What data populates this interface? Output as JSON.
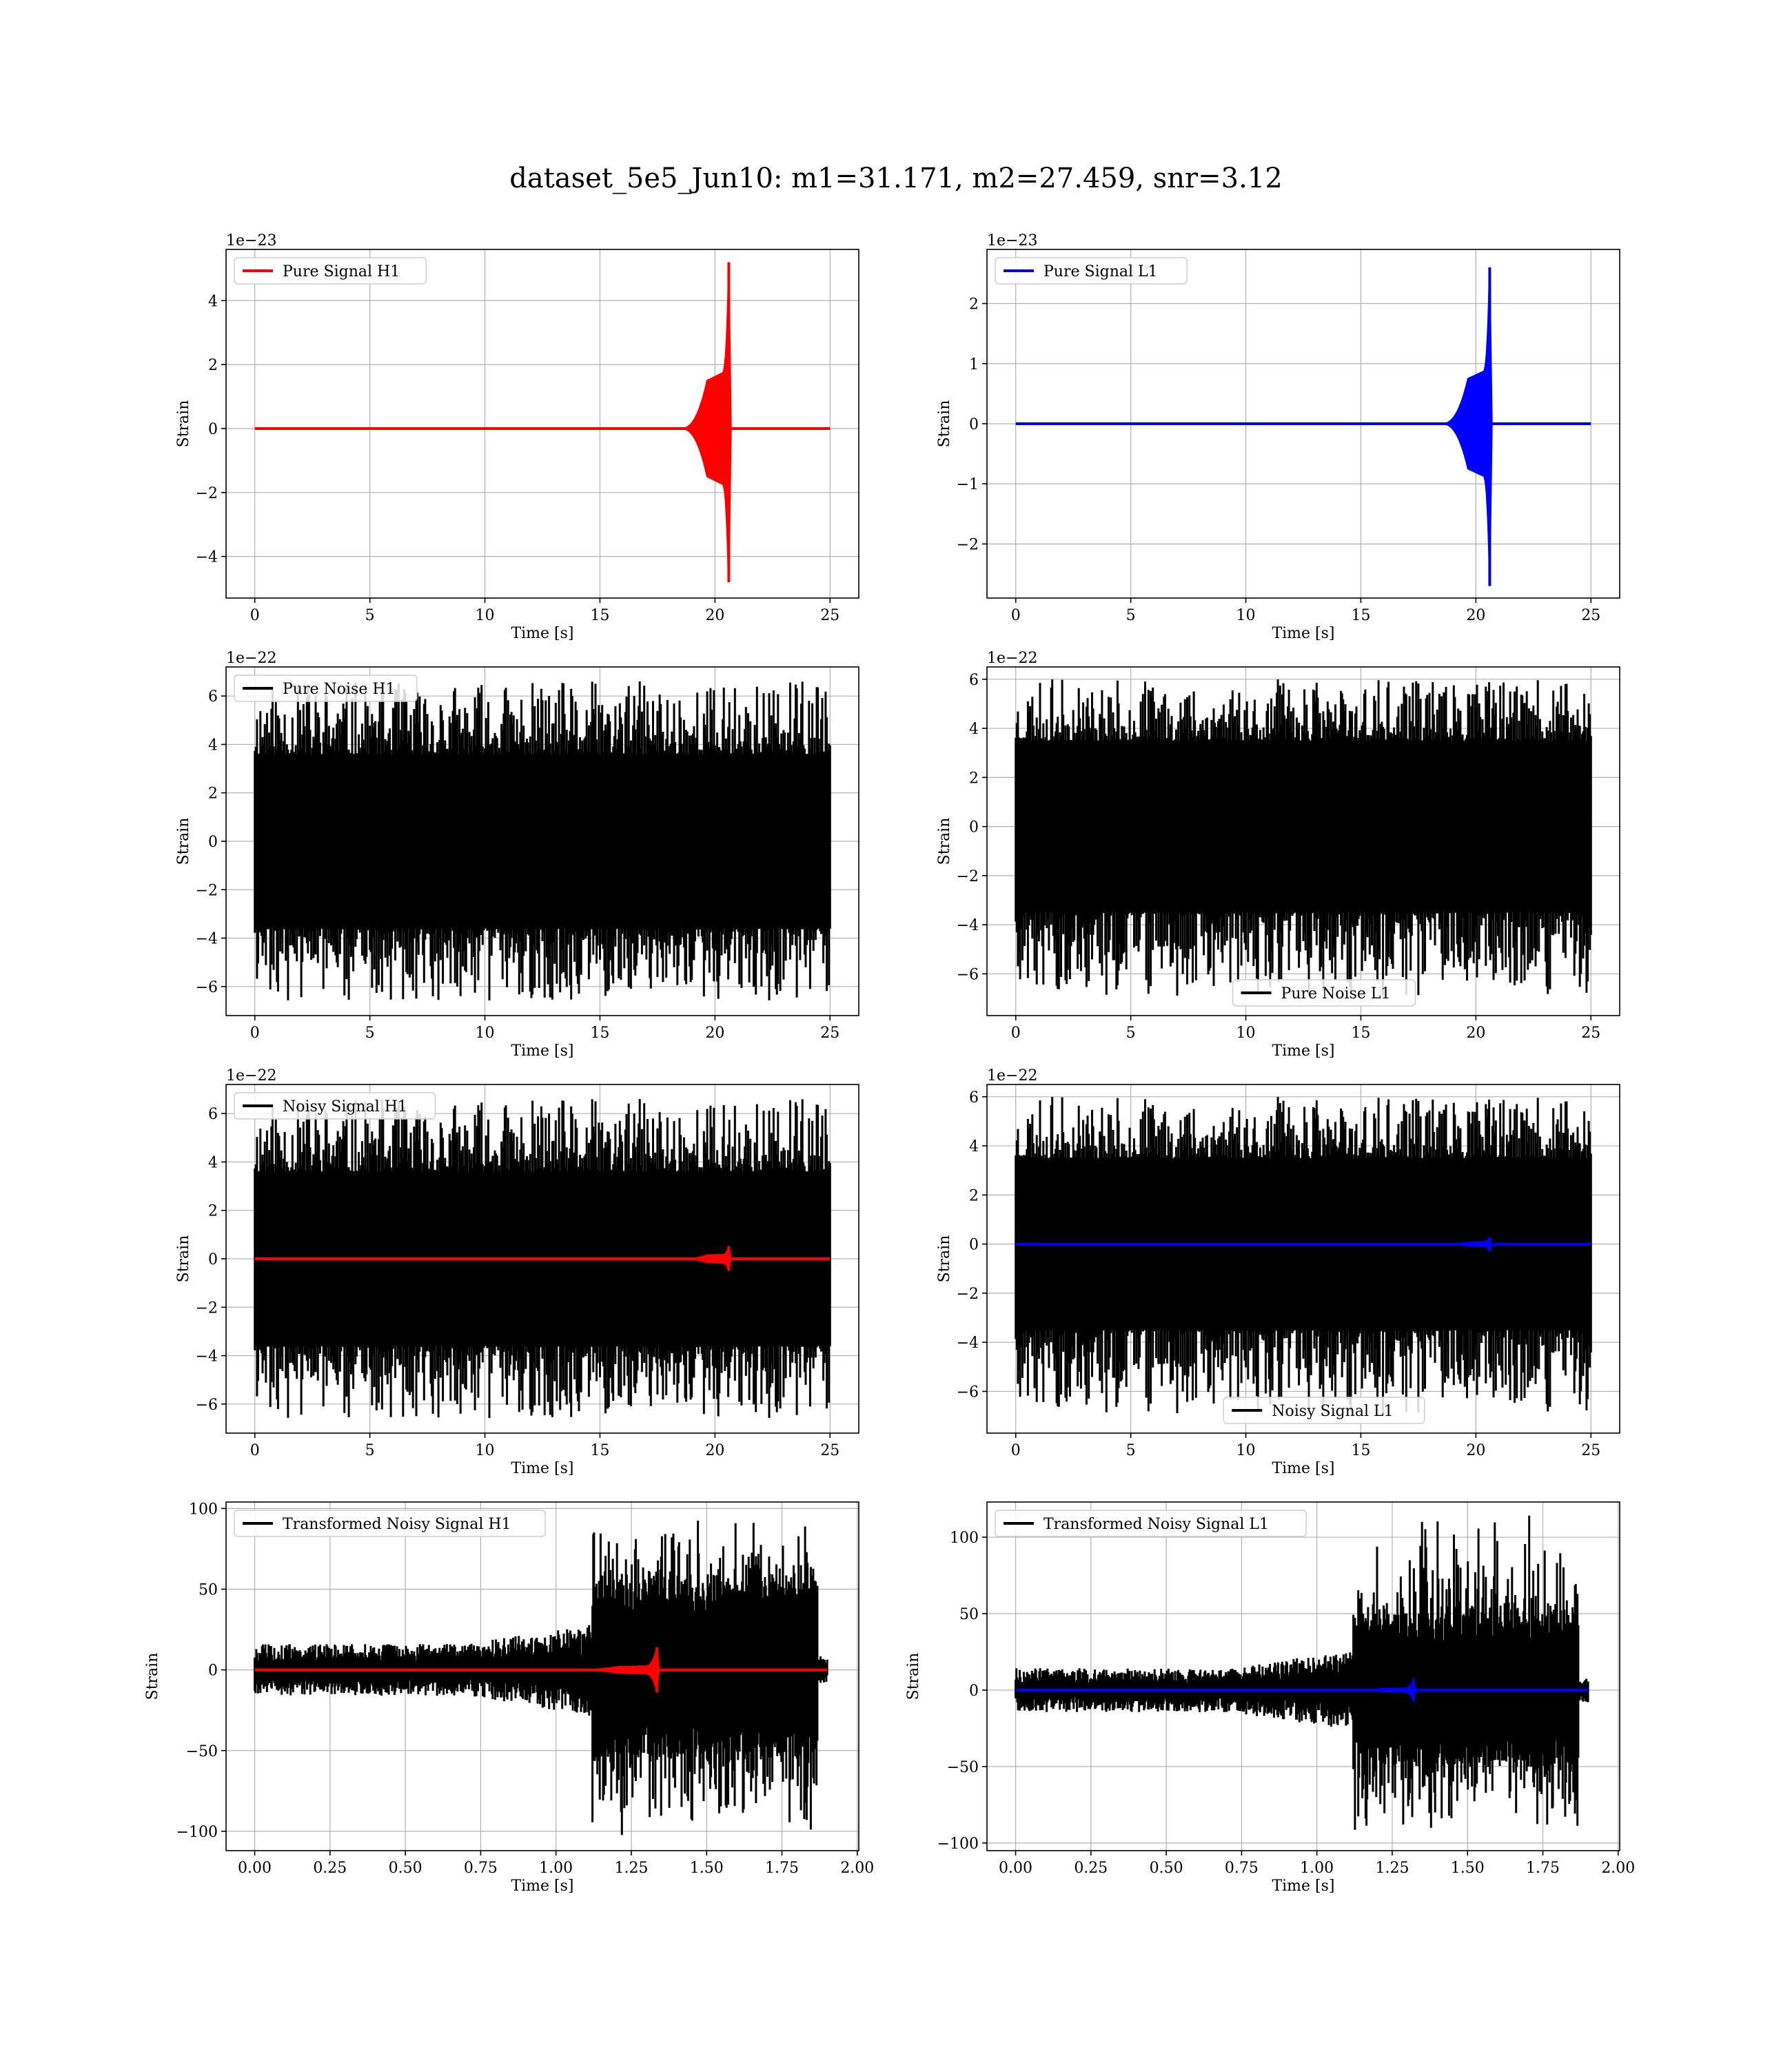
{
  "figure": {
    "title": "dataset_5e5_Jun10: m1=31.171, m2=27.459, snr=3.12"
  },
  "chart_data": [
    {
      "type": "line",
      "xlabel": "Time [s]",
      "ylabel": "Strain",
      "offset_text": "1e−23",
      "xlim": [
        -1.25,
        26.25
      ],
      "ylim": [
        -5.3,
        5.6
      ],
      "xticks": [
        0,
        5,
        10,
        15,
        20,
        25
      ],
      "yticks": [
        -4,
        -2,
        0,
        2,
        4
      ],
      "ytick_labels": [
        "−4",
        "−2",
        "0",
        "2",
        "4"
      ],
      "grid": true,
      "legend_position": "upper-left",
      "series": [
        {
          "name": "Pure Signal H1",
          "color": "#ff0000",
          "kind": "chirp",
          "x": [
            0,
            25
          ],
          "merger_t": 20.6,
          "y_peak_pos": 5.2,
          "y_peak_neg": -4.8,
          "plateau": 1.5,
          "onset_t": 18.5
        }
      ]
    },
    {
      "type": "line",
      "xlabel": "Time [s]",
      "ylabel": "Strain",
      "offset_text": "1e−23",
      "xlim": [
        -1.25,
        26.25
      ],
      "ylim": [
        -2.9,
        2.9
      ],
      "xticks": [
        0,
        5,
        10,
        15,
        20,
        25
      ],
      "yticks": [
        -2,
        -1,
        0,
        1,
        2
      ],
      "ytick_labels": [
        "−2",
        "−1",
        "0",
        "1",
        "2"
      ],
      "grid": true,
      "legend_position": "upper-left",
      "series": [
        {
          "name": "Pure Signal L1",
          "color": "#0000ff",
          "kind": "chirp",
          "x": [
            0,
            25
          ],
          "merger_t": 20.6,
          "y_peak_pos": 2.6,
          "y_peak_neg": -2.7,
          "plateau": 0.75,
          "onset_t": 18.5
        }
      ]
    },
    {
      "type": "line",
      "xlabel": "Time [s]",
      "ylabel": "Strain",
      "offset_text": "1e−22",
      "xlim": [
        -1.25,
        26.25
      ],
      "ylim": [
        -7.2,
        7.2
      ],
      "xticks": [
        0,
        5,
        10,
        15,
        20,
        25
      ],
      "yticks": [
        -6,
        -4,
        -2,
        0,
        2,
        4,
        6
      ],
      "ytick_labels": [
        "−6",
        "−4",
        "−2",
        "0",
        "2",
        "4",
        "6"
      ],
      "grid": true,
      "legend_position": "upper-left",
      "series": [
        {
          "name": "Pure Noise H1",
          "color": "#000000",
          "kind": "noise",
          "x": [
            0,
            25
          ],
          "core": 3.6,
          "max": 6.6,
          "min": -6.6,
          "seed": 11
        }
      ]
    },
    {
      "type": "line",
      "xlabel": "Time [s]",
      "ylabel": "Strain",
      "offset_text": "1e−22",
      "xlim": [
        -1.25,
        26.25
      ],
      "ylim": [
        -7.7,
        6.5
      ],
      "xticks": [
        0,
        5,
        10,
        15,
        20,
        25
      ],
      "yticks": [
        -6,
        -4,
        -2,
        0,
        2,
        4,
        6
      ],
      "ytick_labels": [
        "−6",
        "−4",
        "−2",
        "0",
        "2",
        "4",
        "6"
      ],
      "grid": true,
      "legend_position": "lower-center",
      "series": [
        {
          "name": "Pure Noise L1",
          "color": "#000000",
          "kind": "noise",
          "x": [
            0,
            25
          ],
          "core": 3.5,
          "max": 6.0,
          "min": -6.9,
          "seed": 23
        }
      ]
    },
    {
      "type": "line",
      "xlabel": "Time [s]",
      "ylabel": "Strain",
      "offset_text": "1e−22",
      "xlim": [
        -1.25,
        26.25
      ],
      "ylim": [
        -7.2,
        7.2
      ],
      "xticks": [
        0,
        5,
        10,
        15,
        20,
        25
      ],
      "yticks": [
        -6,
        -4,
        -2,
        0,
        2,
        4,
        6
      ],
      "ytick_labels": [
        "−6",
        "−4",
        "−2",
        "0",
        "2",
        "4",
        "6"
      ],
      "grid": true,
      "legend_position": "upper-left",
      "series": [
        {
          "name": "Noisy Signal H1",
          "color": "#000000",
          "kind": "noise",
          "x": [
            0,
            25
          ],
          "core": 3.6,
          "max": 6.6,
          "min": -6.6,
          "seed": 11
        },
        {
          "name": "",
          "color": "#ff0000",
          "kind": "chirp",
          "x": [
            0,
            25
          ],
          "merger_t": 20.6,
          "y_peak_pos": 0.52,
          "y_peak_neg": -0.48,
          "plateau": 0.15,
          "onset_t": 18.5
        }
      ]
    },
    {
      "type": "line",
      "xlabel": "Time [s]",
      "ylabel": "Strain",
      "offset_text": "1e−22",
      "xlim": [
        -1.25,
        26.25
      ],
      "ylim": [
        -7.7,
        6.5
      ],
      "xticks": [
        0,
        5,
        10,
        15,
        20,
        25
      ],
      "yticks": [
        -6,
        -4,
        -2,
        0,
        2,
        4,
        6
      ],
      "ytick_labels": [
        "−6",
        "−4",
        "−2",
        "0",
        "2",
        "4",
        "6"
      ],
      "grid": true,
      "legend_position": "lower-center",
      "series": [
        {
          "name": "Noisy Signal L1",
          "color": "#000000",
          "kind": "noise",
          "x": [
            0,
            25
          ],
          "core": 3.5,
          "max": 6.0,
          "min": -6.9,
          "seed": 23
        },
        {
          "name": "",
          "color": "#0000ff",
          "kind": "chirp",
          "x": [
            0,
            25
          ],
          "merger_t": 20.6,
          "y_peak_pos": 0.26,
          "y_peak_neg": -0.27,
          "plateau": 0.075,
          "onset_t": 18.5
        }
      ]
    },
    {
      "type": "line",
      "xlabel": "Time [s]",
      "ylabel": "Strain",
      "offset_text": "",
      "xlim": [
        -0.095,
        2.005
      ],
      "ylim": [
        -112,
        104
      ],
      "xticks": [
        0.0,
        0.25,
        0.5,
        0.75,
        1.0,
        1.25,
        1.5,
        1.75,
        2.0
      ],
      "xtick_labels": [
        "0.00",
        "0.25",
        "0.50",
        "0.75",
        "1.00",
        "1.25",
        "1.50",
        "1.75",
        "2.00"
      ],
      "yticks": [
        -100,
        -50,
        0,
        50,
        100
      ],
      "ytick_labels": [
        "−100",
        "−50",
        "0",
        "50",
        "100"
      ],
      "grid": true,
      "legend_position": "upper-left",
      "series": [
        {
          "name": "Transformed Noisy Signal H1",
          "color": "#000000",
          "kind": "whitened",
          "x": [
            0,
            1.9
          ],
          "step_t": 1.12,
          "end_t": 1.87,
          "pre_amp": 10,
          "post_core": 55,
          "max": 98,
          "min": -108,
          "seed": 5
        },
        {
          "name": "",
          "color": "#ff0000",
          "kind": "chirp",
          "x": [
            0,
            1.9
          ],
          "merger_t": 1.335,
          "y_peak_pos": 14,
          "y_peak_neg": -14,
          "plateau": 2,
          "onset_t": 1.05
        }
      ]
    },
    {
      "type": "line",
      "xlabel": "Time [s]",
      "ylabel": "Strain",
      "offset_text": "",
      "xlim": [
        -0.095,
        2.005
      ],
      "ylim": [
        -105,
        123
      ],
      "xticks": [
        0.0,
        0.25,
        0.5,
        0.75,
        1.0,
        1.25,
        1.5,
        1.75,
        2.0
      ],
      "xtick_labels": [
        "0.00",
        "0.25",
        "0.50",
        "0.75",
        "1.00",
        "1.25",
        "1.50",
        "1.75",
        "2.00"
      ],
      "yticks": [
        -100,
        -50,
        0,
        50,
        100
      ],
      "ytick_labels": [
        "−100",
        "−50",
        "0",
        "50",
        "100"
      ],
      "grid": true,
      "legend_position": "upper-left",
      "series": [
        {
          "name": "Transformed Noisy Signal L1",
          "color": "#000000",
          "kind": "whitened",
          "x": [
            0,
            1.9
          ],
          "step_t": 1.12,
          "end_t": 1.87,
          "pre_amp": 9,
          "post_core": 50,
          "max": 117,
          "min": -97,
          "seed": 9
        },
        {
          "name": "",
          "color": "#0000ff",
          "kind": "chirp",
          "x": [
            0,
            1.9
          ],
          "merger_t": 1.32,
          "y_peak_pos": 7,
          "y_peak_neg": -7,
          "plateau": 1,
          "onset_t": 1.1
        }
      ]
    }
  ]
}
